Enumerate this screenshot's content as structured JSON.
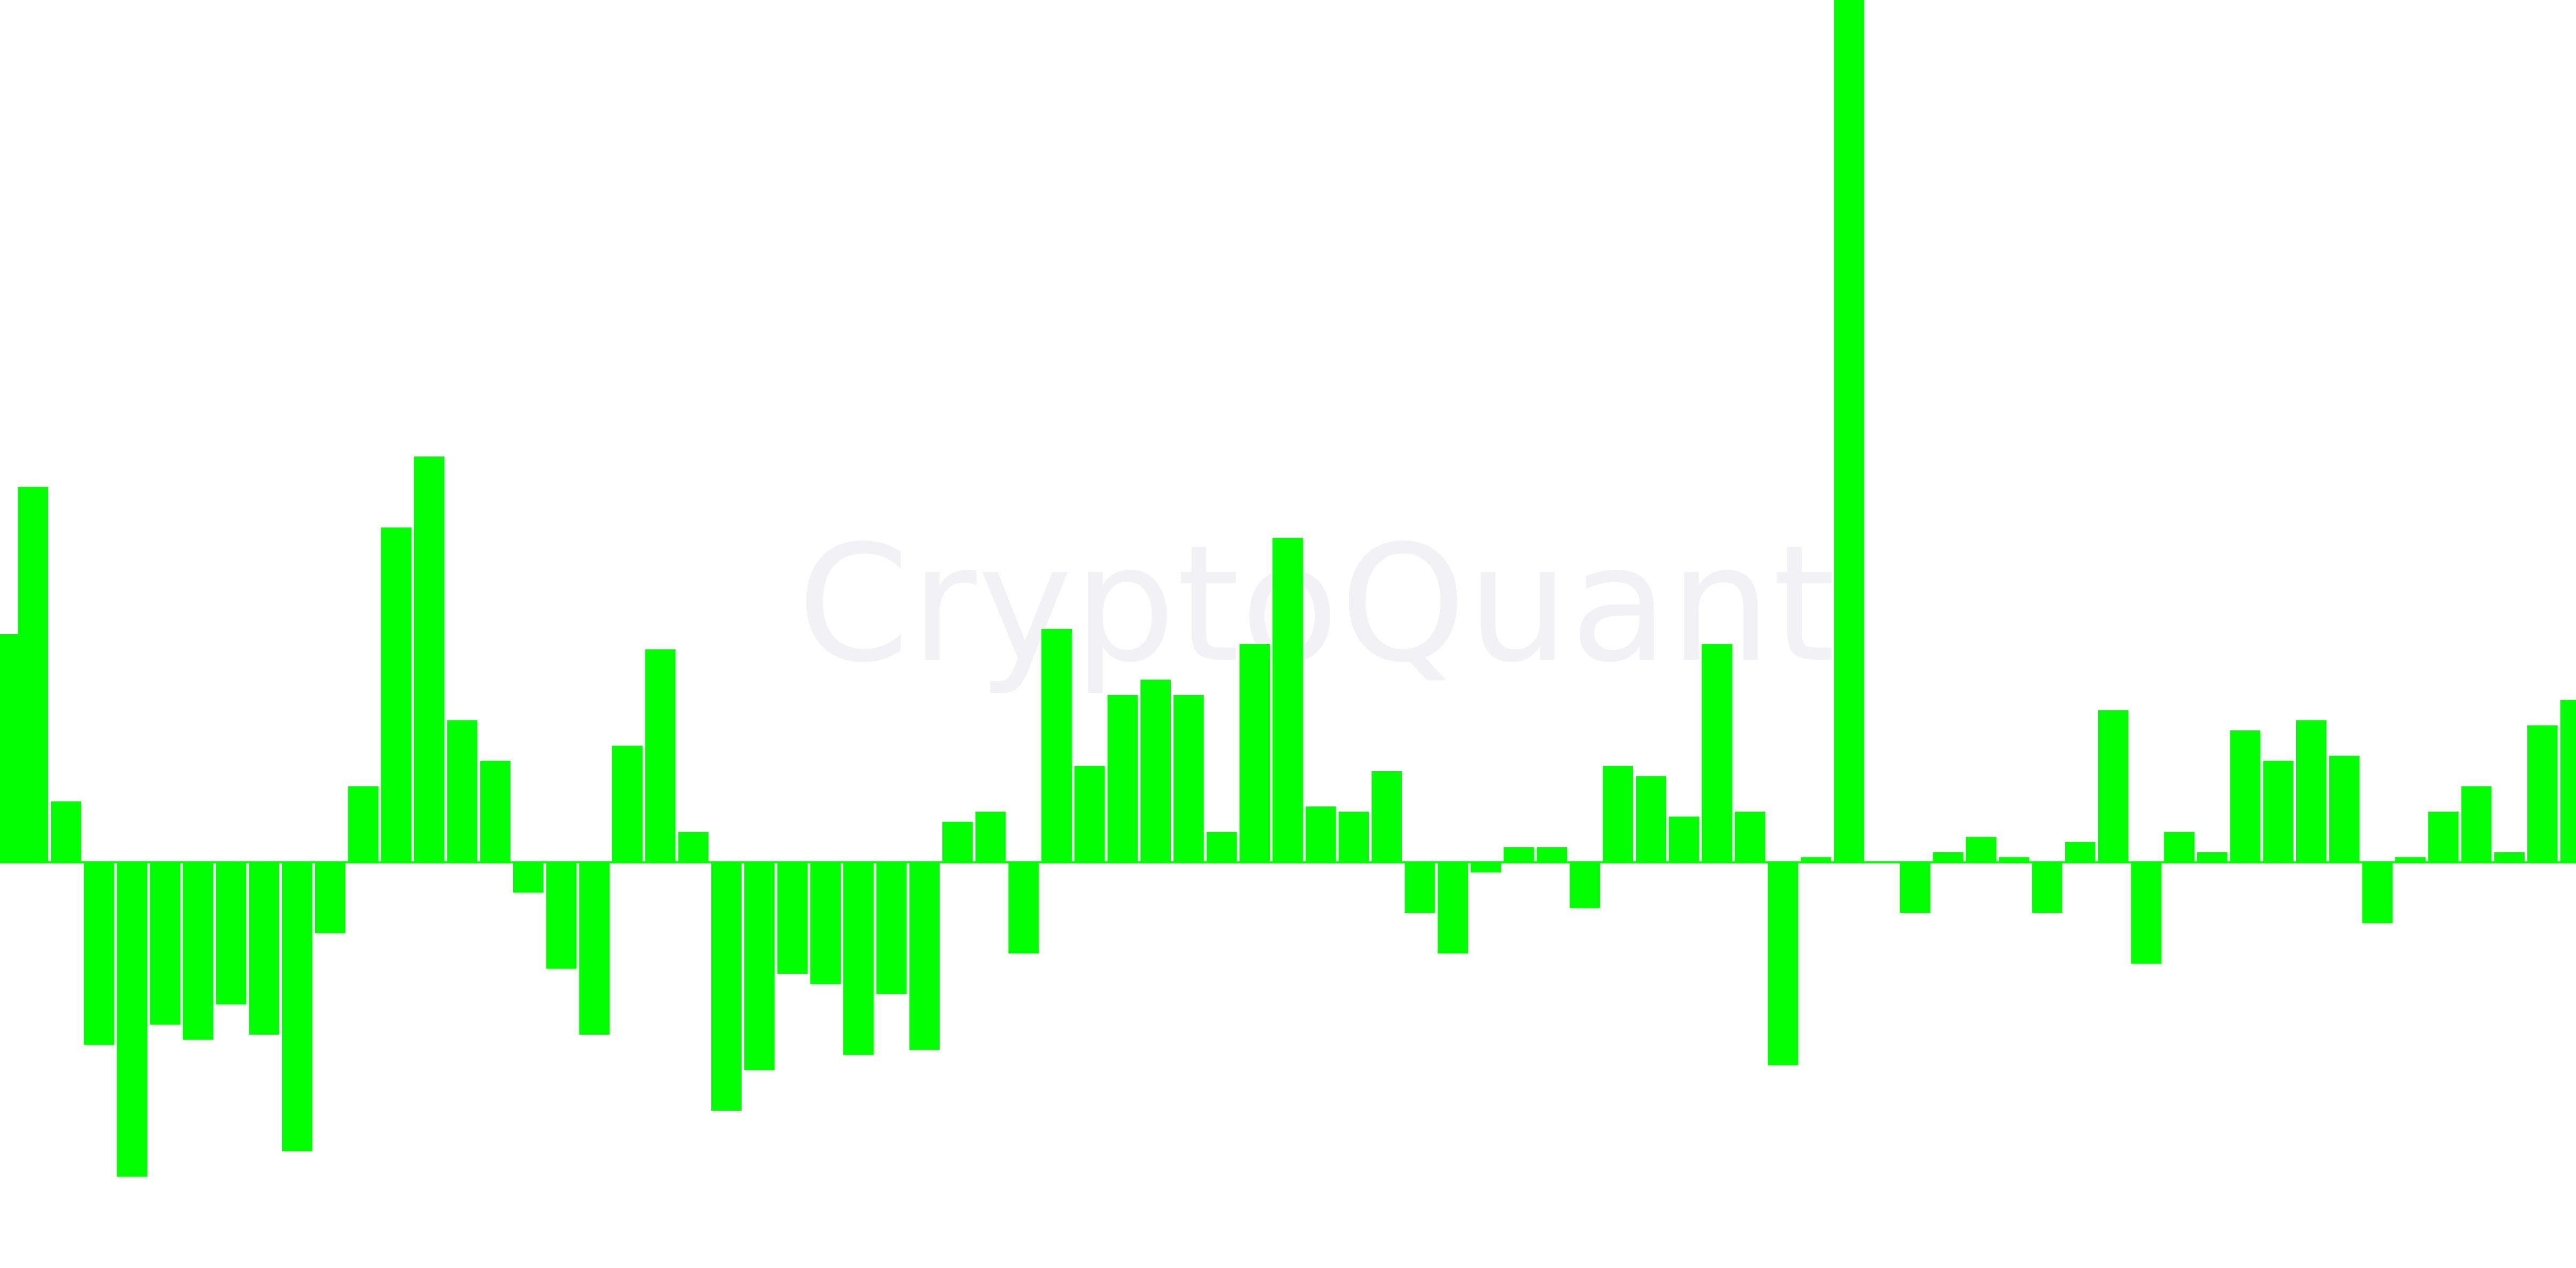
{
  "watermark": "CryptoQuant",
  "chart_data": {
    "type": "area",
    "title": "",
    "xlabel": "",
    "ylabel": "",
    "grid": false,
    "legend": "none",
    "baseline": 0,
    "ylim": [
      -0.8,
      1.7
    ],
    "color": "#00ff00",
    "x": [
      0,
      20,
      40,
      60,
      80,
      100,
      120,
      140,
      160,
      180,
      200,
      220,
      240,
      260,
      280,
      300,
      320,
      340,
      360,
      380,
      400,
      420,
      440,
      460,
      480,
      500,
      520,
      540,
      560,
      580,
      600,
      620,
      640,
      660,
      680,
      700,
      720,
      740,
      760,
      780,
      800,
      820,
      840,
      860,
      880,
      900,
      920,
      940,
      960,
      980,
      1000,
      1020,
      1040,
      1060,
      1080,
      1100,
      1120,
      1140,
      1160,
      1180,
      1200,
      1220,
      1240,
      1260,
      1280,
      1300,
      1320,
      1340,
      1360,
      1380,
      1400,
      1420,
      1440,
      1460,
      1480,
      1500,
      1520,
      1540,
      1560
    ],
    "values": [
      0.45,
      0.74,
      0.12,
      -0.36,
      -0.62,
      -0.32,
      -0.35,
      -0.28,
      -0.34,
      -0.57,
      -0.14,
      0.15,
      0.66,
      0.8,
      0.28,
      0.2,
      -0.06,
      -0.21,
      -0.34,
      0.23,
      0.42,
      0.06,
      -0.49,
      -0.41,
      -0.22,
      -0.24,
      -0.38,
      -0.26,
      -0.37,
      0.08,
      0.1,
      -0.18,
      0.46,
      0.19,
      0.33,
      0.36,
      0.33,
      0.06,
      0.43,
      0.64,
      0.11,
      0.1,
      0.18,
      -0.1,
      -0.18,
      -0.02,
      0.03,
      0.03,
      -0.09,
      0.19,
      0.17,
      0.09,
      0.43,
      0.1,
      -0.4,
      0.01,
      1.7,
      0.0,
      -0.1,
      0.02,
      0.05,
      0.01,
      -0.1,
      0.04,
      0.3,
      -0.2,
      0.06,
      0.02,
      0.26,
      0.2,
      0.28,
      0.21,
      -0.12,
      0.01,
      0.1,
      0.15,
      0.02,
      0.27,
      0.32
    ]
  }
}
